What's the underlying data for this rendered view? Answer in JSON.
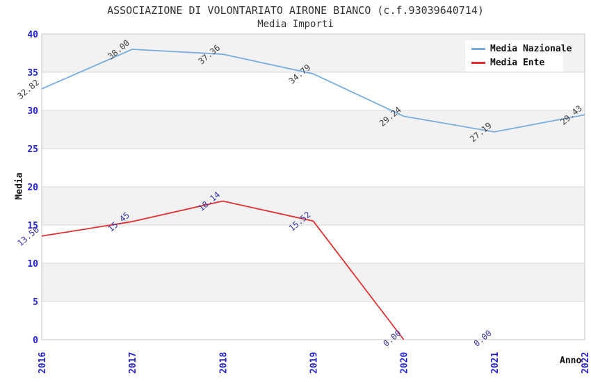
{
  "chart_data": {
    "type": "line",
    "title": "ASSOCIAZIONE DI VOLONTARIATO AIRONE BIANCO (c.f.93039640714)",
    "subtitle": "Media Importi",
    "xlabel": "Anno",
    "ylabel": "Media",
    "x_categories": [
      "2016",
      "2017",
      "2018",
      "2019",
      "2020",
      "2021",
      "2022"
    ],
    "y_ticks": [
      "0",
      "5",
      "10",
      "15",
      "20",
      "25",
      "30",
      "35",
      "40"
    ],
    "ylim": [
      0,
      40
    ],
    "grid": "horizontal-only",
    "alternating_bands": true,
    "legend_position": "top-right",
    "series": [
      {
        "name": "Media Nazionale",
        "color": "#78aede",
        "label_color": "#3c3c3c",
        "values": [
          32.82,
          38.0,
          37.36,
          34.79,
          29.24,
          27.19,
          29.43
        ],
        "labels": [
          "32.82",
          "38.00",
          "37.36",
          "34.79",
          "29.24",
          "27.19",
          "29.43"
        ],
        "line_end_index": 6
      },
      {
        "name": "Media Ente",
        "color": "#e02f2f",
        "label_color": "#3333aa",
        "values": [
          13.56,
          15.45,
          18.14,
          15.52,
          0.0,
          0.0,
          null
        ],
        "labels": [
          "13.56",
          "15.45",
          "18.14",
          "15.52",
          "0.00",
          "0.00",
          ""
        ],
        "line_end_index": 4
      }
    ],
    "colors": {
      "tick_label": "#2222cc",
      "grid": "#d8d8d8",
      "band": "#f2f2f2",
      "plot_border": "#c6c6c6",
      "title_text": "#333333"
    }
  }
}
